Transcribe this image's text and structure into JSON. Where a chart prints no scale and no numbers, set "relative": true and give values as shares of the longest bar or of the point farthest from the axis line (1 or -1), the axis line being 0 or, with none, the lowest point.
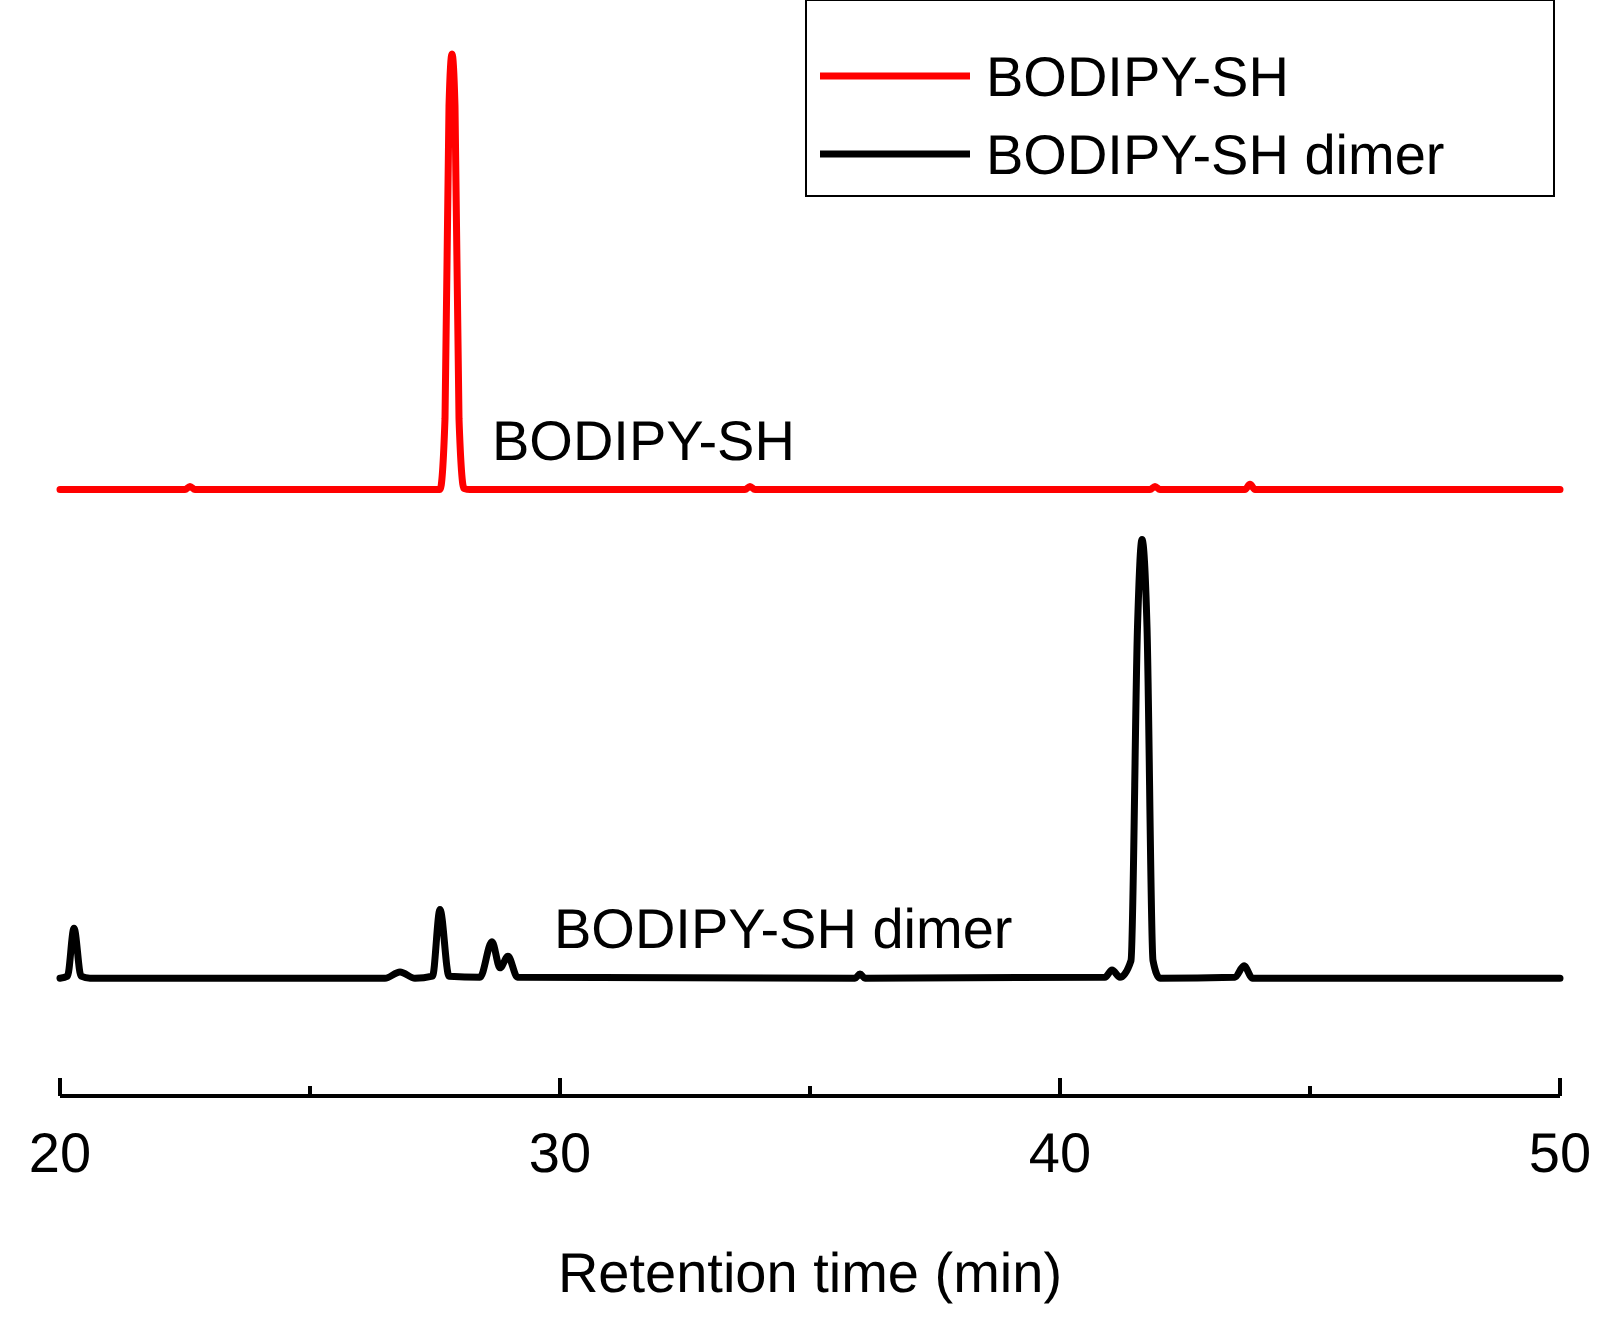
{
  "chart_data": {
    "type": "line",
    "relative": true,
    "xlabel": "Retention time (min)",
    "xlim": [
      20,
      50
    ],
    "xticks": [
      20,
      {
        "value": 25,
        "label": null
      },
      30,
      {
        "value": 35,
        "label": null
      },
      40,
      {
        "value": 45,
        "label": null
      },
      50
    ],
    "legend": "top right",
    "grid": false,
    "marker": "none",
    "line_style": "solid",
    "series": [
      {
        "name": "BODIPY-SH",
        "color": "#ff0000",
        "x": [
          20,
          22.5,
          22.6,
          22.7,
          27.6,
          27.7,
          27.78,
          27.84,
          27.9,
          27.98,
          28.08,
          28.2,
          33.7,
          33.8,
          33.9,
          41.8,
          41.9,
          42.0,
          43.7,
          43.8,
          43.9,
          50
        ],
        "values": [
          0.582,
          0.582,
          0.585,
          0.582,
          0.582,
          0.65,
          0.95,
          1.0,
          0.95,
          0.65,
          0.583,
          0.582,
          0.582,
          0.585,
          0.582,
          0.582,
          0.585,
          0.582,
          0.582,
          0.587,
          0.582,
          0.582
        ]
      },
      {
        "name": "BODIPY-SH dimer",
        "color": "#000000",
        "x": [
          20.0,
          20.15,
          20.28,
          20.42,
          20.6,
          26.5,
          26.8,
          27.1,
          27.45,
          27.6,
          27.78,
          28.4,
          28.64,
          28.8,
          28.96,
          29.15,
          35.9,
          36.0,
          36.1,
          40.9,
          41.04,
          41.2,
          41.42,
          41.55,
          41.64,
          41.74,
          41.86,
          42.0,
          43.5,
          43.68,
          43.85,
          50
        ],
        "values": [
          0.113,
          0.115,
          0.161,
          0.115,
          0.113,
          0.113,
          0.119,
          0.113,
          0.115,
          0.179,
          0.115,
          0.114,
          0.148,
          0.123,
          0.134,
          0.114,
          0.113,
          0.117,
          0.113,
          0.114,
          0.121,
          0.114,
          0.13,
          0.45,
          0.534,
          0.45,
          0.13,
          0.113,
          0.114,
          0.125,
          0.113,
          0.113
        ]
      }
    ],
    "annotations": [
      "BODIPY-SH",
      "BODIPY-SH dimer"
    ]
  }
}
